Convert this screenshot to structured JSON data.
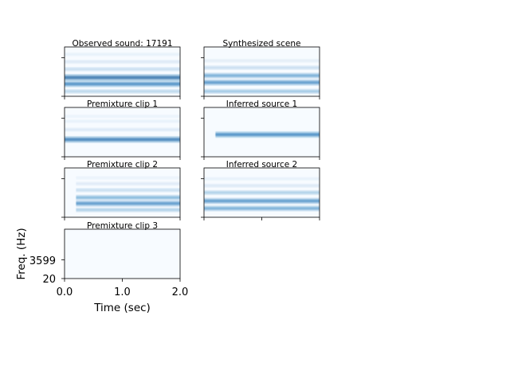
{
  "chart_data": {
    "type": "heatmap",
    "colormap": "Blues",
    "xlabel": "Time (sec)",
    "ylabel": "Freq. (Hz)",
    "xlim": [
      0.0,
      2.0
    ],
    "x_ticks": [
      "0.0",
      "1.0",
      "2.0"
    ],
    "y_ticks": [
      "3599",
      "20"
    ],
    "panels": [
      {
        "id": "observed",
        "title": "Observed sound: 17191",
        "onset_sec": 0.0,
        "bands": [
          {
            "freq_frac": 0.1,
            "intensity": 0.35
          },
          {
            "freq_frac": 0.25,
            "intensity": 0.75
          },
          {
            "freq_frac": 0.38,
            "intensity": 0.85
          },
          {
            "freq_frac": 0.55,
            "intensity": 0.3
          },
          {
            "freq_frac": 0.7,
            "intensity": 0.2
          },
          {
            "freq_frac": 0.85,
            "intensity": 0.12
          }
        ]
      },
      {
        "id": "synthesized",
        "title": "Synthesized scene",
        "onset_sec": 0.0,
        "bands": [
          {
            "freq_frac": 0.1,
            "intensity": 0.45
          },
          {
            "freq_frac": 0.28,
            "intensity": 0.7
          },
          {
            "freq_frac": 0.42,
            "intensity": 0.6
          },
          {
            "freq_frac": 0.58,
            "intensity": 0.3
          },
          {
            "freq_frac": 0.72,
            "intensity": 0.15
          }
        ]
      },
      {
        "id": "premix1",
        "title": "Premixture clip 1",
        "onset_sec": 0.0,
        "bands": [
          {
            "freq_frac": 0.35,
            "intensity": 0.8
          },
          {
            "freq_frac": 0.55,
            "intensity": 0.2
          },
          {
            "freq_frac": 0.72,
            "intensity": 0.12
          },
          {
            "freq_frac": 0.82,
            "intensity": 0.1
          }
        ]
      },
      {
        "id": "inferred1",
        "title": "Inferred source 1",
        "onset_sec": 0.2,
        "bands": [
          {
            "freq_frac": 0.45,
            "intensity": 0.75
          }
        ]
      },
      {
        "id": "premix2",
        "title": "Premixture clip 2",
        "onset_sec": 0.2,
        "bands": [
          {
            "freq_frac": 0.15,
            "intensity": 0.4
          },
          {
            "freq_frac": 0.28,
            "intensity": 0.7
          },
          {
            "freq_frac": 0.4,
            "intensity": 0.55
          },
          {
            "freq_frac": 0.55,
            "intensity": 0.3
          },
          {
            "freq_frac": 0.68,
            "intensity": 0.18
          },
          {
            "freq_frac": 0.8,
            "intensity": 0.1
          }
        ]
      },
      {
        "id": "inferred2",
        "title": "Inferred source 2",
        "onset_sec": 0.0,
        "bands": [
          {
            "freq_frac": 0.18,
            "intensity": 0.6
          },
          {
            "freq_frac": 0.33,
            "intensity": 0.7
          },
          {
            "freq_frac": 0.5,
            "intensity": 0.4
          },
          {
            "freq_frac": 0.64,
            "intensity": 0.2
          },
          {
            "freq_frac": 0.78,
            "intensity": 0.12
          }
        ]
      },
      {
        "id": "premix3",
        "title": "Premixture clip 3",
        "onset_sec": 0.0,
        "bands": []
      }
    ]
  }
}
